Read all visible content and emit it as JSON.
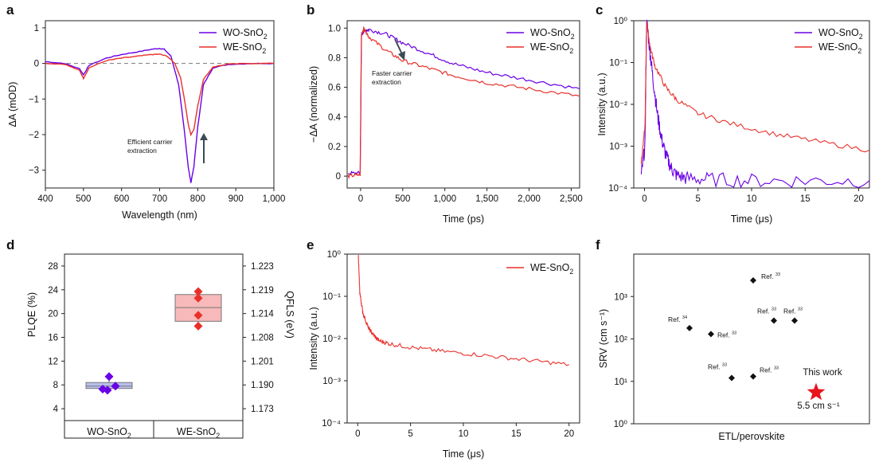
{
  "colors": {
    "wo": "#6a00e6",
    "we": "#e8302a",
    "we_fill": "#f7b9b9",
    "wo_fill": "#b8c0ef",
    "star": "#e8141c",
    "marker": "#111111"
  },
  "chart_data": [
    {
      "panel": "a",
      "type": "line",
      "xlabel": "Wavelength (nm)",
      "ylabel": "ΔA (mOD)",
      "xlim": [
        400,
        1000
      ],
      "ylim": [
        -3.5,
        1.2
      ],
      "xticks": [
        "400",
        "500",
        "600",
        "700",
        "800",
        "900",
        "1,000"
      ],
      "yticks": [
        "1",
        "0",
        "−1",
        "−2",
        "−3"
      ],
      "baseline": 0,
      "series": [
        {
          "name": "WO-SnO2",
          "key": "wo",
          "x": [
            400,
            450,
            490,
            500,
            515,
            560,
            600,
            640,
            680,
            700,
            712,
            730,
            750,
            765,
            775,
            782,
            790,
            800,
            815,
            840,
            880,
            940,
            1000
          ],
          "y": [
            0.05,
            0.0,
            -0.15,
            -0.32,
            -0.05,
            0.15,
            0.25,
            0.32,
            0.4,
            0.42,
            0.4,
            0.2,
            -0.6,
            -1.9,
            -2.9,
            -3.35,
            -2.9,
            -1.8,
            -0.6,
            -0.12,
            -0.03,
            0,
            0
          ]
        },
        {
          "name": "WE-SnO2",
          "key": "we",
          "x": [
            400,
            450,
            490,
            500,
            515,
            560,
            600,
            640,
            680,
            700,
            720,
            740,
            755,
            765,
            775,
            782,
            790,
            800,
            815,
            840,
            880,
            940,
            1000
          ],
          "y": [
            0.0,
            -0.02,
            -0.2,
            -0.42,
            -0.12,
            0.08,
            0.15,
            0.2,
            0.25,
            0.26,
            0.2,
            0.0,
            -0.4,
            -1.0,
            -1.7,
            -2.0,
            -1.85,
            -1.2,
            -0.45,
            -0.1,
            -0.02,
            0,
            0
          ]
        }
      ],
      "annotation": "Efficient carrier extraction"
    },
    {
      "panel": "b",
      "type": "line",
      "xlabel": "Time (ps)",
      "ylabel": "−ΔA (normalized)",
      "xlim": [
        -160,
        2600
      ],
      "ylim": [
        -0.08,
        1.05
      ],
      "xticks": [
        "0",
        "500",
        "1,000",
        "1,500",
        "2,000",
        "2,500"
      ],
      "yticks": [
        "0",
        "0.2",
        "0.4",
        "0.6",
        "0.8",
        "1.0"
      ],
      "series": [
        {
          "name": "WO-SnO2",
          "key": "wo",
          "x": [
            -150,
            -5,
            10,
            40,
            100,
            300,
            500,
            800,
            1100,
            1500,
            2000,
            2600
          ],
          "y": [
            0.02,
            0.02,
            0.95,
            0.98,
            0.99,
            0.96,
            0.9,
            0.83,
            0.76,
            0.7,
            0.65,
            0.59
          ]
        },
        {
          "name": "WE-SnO2",
          "key": "we",
          "x": [
            -150,
            -5,
            10,
            40,
            100,
            300,
            500,
            800,
            1100,
            1500,
            2000,
            2600
          ],
          "y": [
            0.0,
            0.01,
            0.95,
            1.0,
            0.94,
            0.85,
            0.78,
            0.73,
            0.68,
            0.63,
            0.59,
            0.54
          ]
        }
      ],
      "annotation": "Faster carrier extraction"
    },
    {
      "panel": "c",
      "type": "line",
      "yscale": "log",
      "xlabel": "Time (μs)",
      "ylabel": "Intensity (a.u.)",
      "xlim": [
        -1,
        21
      ],
      "ylim": [
        0.0001,
        1
      ],
      "xticks": [
        "0",
        "5",
        "10",
        "15",
        "20"
      ],
      "yticks": [
        "10⁰",
        "10⁻¹",
        "10⁻²",
        "10⁻³",
        "10⁻⁴"
      ],
      "series": [
        {
          "name": "WO-SnO2",
          "key": "wo",
          "x": [
            -0.3,
            0.05,
            0.2,
            0.5,
            0.8,
            1.2,
            1.6,
            2.0,
            2.5,
            3.0,
            4,
            6,
            10,
            15,
            21
          ],
          "y": [
            0.0002,
            0.001,
            1,
            0.2,
            0.04,
            0.006,
            0.0015,
            0.0006,
            0.0003,
            0.0002,
            0.00017,
            0.00016,
            0.00015,
            0.00015,
            0.00015
          ]
        },
        {
          "name": "WE-SnO2",
          "key": "we",
          "x": [
            -0.3,
            0.05,
            0.2,
            0.5,
            1,
            2,
            3,
            5,
            8,
            12,
            16,
            21
          ],
          "y": [
            0.0004,
            0.003,
            1,
            0.25,
            0.08,
            0.025,
            0.013,
            0.006,
            0.0035,
            0.002,
            0.0013,
            0.0008
          ]
        }
      ]
    },
    {
      "panel": "d",
      "type": "box",
      "ylabel": "PLQE (%)",
      "ylabel_right": "QFLS (eV)",
      "ylim": [
        2,
        30
      ],
      "yticks": [
        28,
        24,
        20,
        16,
        12,
        8,
        4
      ],
      "yticks_right": [
        "1.223",
        "1.219",
        "1.214",
        "1.208",
        "1.201",
        "1.190",
        "1.173"
      ],
      "categories": [
        "WO-SnO2",
        "WE-SnO2"
      ],
      "boxes": [
        {
          "name": "WO-SnO2",
          "key": "wo",
          "q1": 7.4,
          "median": 7.8,
          "q3": 8.4,
          "min": 7.1,
          "max": 9.5,
          "points": [
            9.4,
            7.8,
            7.1,
            7.3
          ]
        },
        {
          "name": "WE-SnO2",
          "key": "we",
          "q1": 18.7,
          "median": 21.0,
          "q3": 23.2,
          "min": 17.6,
          "max": 23.9,
          "points": [
            23.7,
            22.6,
            19.7,
            17.9
          ]
        }
      ]
    },
    {
      "panel": "e",
      "type": "line",
      "yscale": "log",
      "xlabel": "Time (μs)",
      "ylabel": "Intensity (a.u.)",
      "xlim": [
        -1,
        21
      ],
      "ylim": [
        0.0001,
        1
      ],
      "xticks": [
        "0",
        "5",
        "10",
        "15",
        "20"
      ],
      "yticks": [
        "10⁰",
        "10⁻¹",
        "10⁻²",
        "10⁻³",
        "10⁻⁴"
      ],
      "series": [
        {
          "name": "WE-SnO2",
          "key": "we",
          "x": [
            0.05,
            0.2,
            0.5,
            1,
            1.5,
            2,
            3,
            5,
            8,
            12,
            16,
            20
          ],
          "y": [
            1,
            0.12,
            0.04,
            0.018,
            0.012,
            0.009,
            0.0075,
            0.0062,
            0.005,
            0.004,
            0.0031,
            0.0024
          ]
        }
      ]
    },
    {
      "panel": "f",
      "type": "scatter",
      "yscale": "log",
      "xlabel": "ETL/perovskite",
      "ylabel": "SRV (cm s⁻¹)",
      "ylim": [
        1,
        10000
      ],
      "yticks": [
        "10³",
        "10²",
        "10¹",
        "10⁰"
      ],
      "points": [
        {
          "label": "Ref.",
          "sup": "34",
          "y": 180,
          "slot": 0
        },
        {
          "label": "Ref.",
          "sup": "33",
          "y": 130,
          "slot": 1
        },
        {
          "label": "Ref.",
          "sup": "33",
          "y": 12,
          "slot": 2
        },
        {
          "label": "Ref.",
          "sup": "33",
          "y": 2400,
          "slot": 3
        },
        {
          "label": "Ref.",
          "sup": "33",
          "y": 13,
          "slot": 4
        },
        {
          "label": "Ref.",
          "sup": "33",
          "y": 270,
          "slot": 5
        },
        {
          "label": "Ref.",
          "sup": "33",
          "y": 270,
          "slot": 6
        }
      ],
      "highlight": {
        "label": "This work",
        "value_text": "5.5 cm s⁻¹",
        "y": 5.5
      }
    }
  ]
}
